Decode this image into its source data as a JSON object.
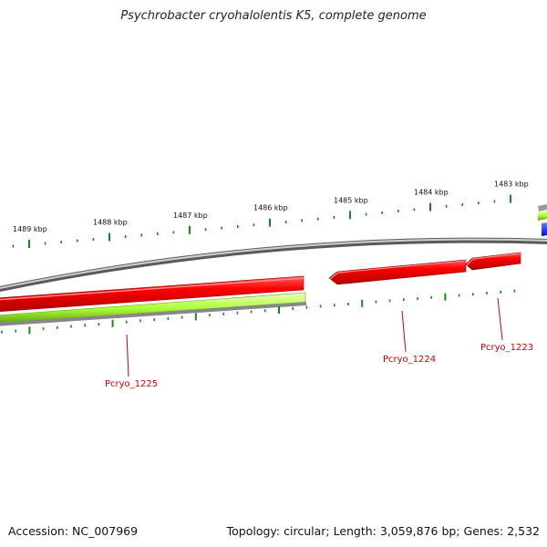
{
  "title": "Psychrobacter cryohalolentis K5, complete genome",
  "accession": "Accession: NC_007969",
  "summary": "Topology: circular; Length: 3,059,876 bp; Genes: 2,532",
  "colors": {
    "backbone": "#8a8a8a",
    "forward_gene": "#e60000",
    "rna_band": "#b8ff45",
    "tick": "#138a13",
    "gene_label": "#cc0000",
    "edge_blue": "#0015d6"
  },
  "kbp_ticks": [
    {
      "label": "1489 kbp",
      "pos": 1489
    },
    {
      "label": "1488 kbp",
      "pos": 1488
    },
    {
      "label": "1487 kbp",
      "pos": 1487
    },
    {
      "label": "1486 kbp",
      "pos": 1486
    },
    {
      "label": "1485 kbp",
      "pos": 1485
    },
    {
      "label": "1484 kbp",
      "pos": 1484
    },
    {
      "label": "1483 kbp",
      "pos": 1483
    }
  ],
  "genes": [
    {
      "name": "Pcryo_1225"
    },
    {
      "name": "Pcryo_1224"
    },
    {
      "name": "Pcryo_1223"
    }
  ]
}
